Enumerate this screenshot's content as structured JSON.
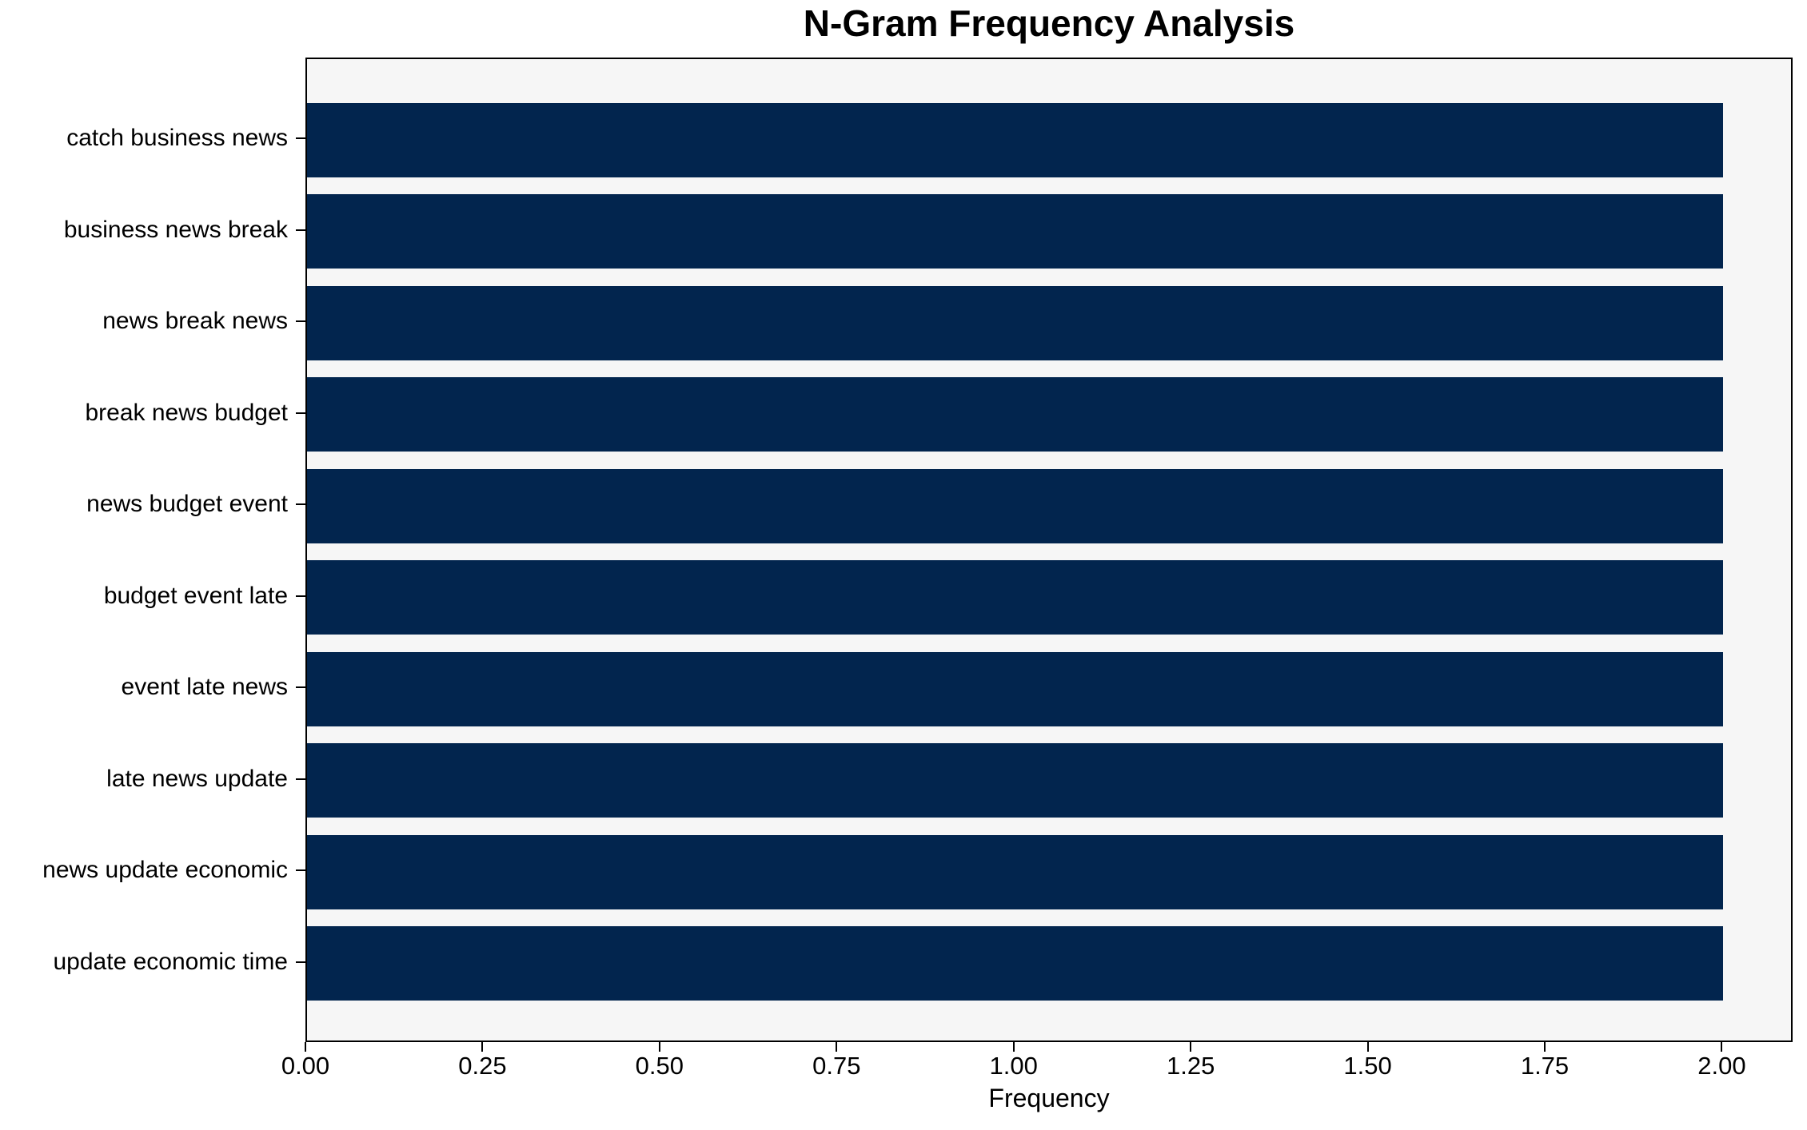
{
  "chart_data": {
    "type": "bar",
    "orientation": "horizontal",
    "title": "N-Gram Frequency Analysis",
    "xlabel": "Frequency",
    "ylabel": "",
    "categories": [
      "catch business news",
      "business news break",
      "news break news",
      "break news budget",
      "news budget event",
      "budget event late",
      "event late news",
      "late news update",
      "news update economic",
      "update economic time"
    ],
    "values": [
      2,
      2,
      2,
      2,
      2,
      2,
      2,
      2,
      2,
      2
    ],
    "xlim": [
      0,
      2.1
    ],
    "xticks": [
      0.0,
      0.25,
      0.5,
      0.75,
      1.0,
      1.25,
      1.5,
      1.75,
      2.0
    ],
    "xtick_labels": [
      "0.00",
      "0.25",
      "0.50",
      "0.75",
      "1.00",
      "1.25",
      "1.50",
      "1.75",
      "2.00"
    ],
    "grid": false,
    "legend": null,
    "colors": {
      "bar": "#02254e",
      "plot_background": "#f6f6f6",
      "figure_background": "#ffffff",
      "spine": "#000000",
      "text": "#000000"
    }
  }
}
